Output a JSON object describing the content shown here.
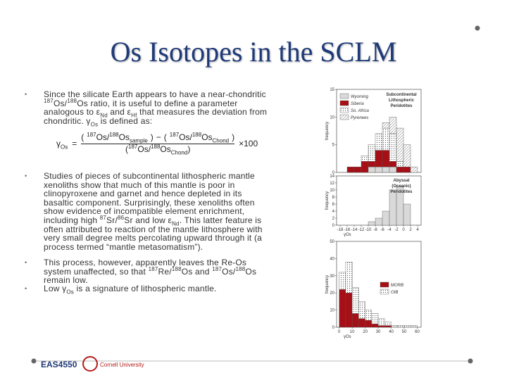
{
  "slide": {
    "title": "Os Isotopes in the SCLM",
    "bullets": [
      [
        "Since the silicate Earth appears to have a near-chondritic ",
        {
          "sup": "187"
        },
        "Os/",
        {
          "sup": "188"
        },
        "Os ratio, it is useful to define a parameter analogous to ε",
        {
          "sub": "Nd"
        },
        " and ε",
        {
          "sub": "Hf"
        },
        " that measures the deviation from chondritic. γ",
        {
          "sub": "Os"
        },
        " is defined as:"
      ],
      [
        "Studies of pieces of subcontinental lithospheric mantle xenoliths show that much of this mantle is poor in clinopyroxene and garnet and hence depleted in its basaltic component. Surprisingly, these xenoliths often show evidence of incompatible element enrichment, including high ",
        {
          "sup": "87"
        },
        "Sr/",
        {
          "sup": "86"
        },
        "Sr and low ε",
        {
          "sub": "Nd"
        },
        ". This latter feature is often attributed to reaction of the mantle lithosphere with very small degree melts percolating upward through it (a process termed “mantle metasomatism”)."
      ],
      [
        "This process, however, apparently leaves the Re-Os system unaffected, so that ",
        {
          "sup": "187"
        },
        "Re/",
        {
          "sup": "188"
        },
        "Os and ",
        {
          "sup": "187"
        },
        "Os/",
        {
          "sup": "188"
        },
        "Os remain low."
      ],
      [
        "Low γ",
        {
          "sub": "Os"
        },
        " is a signature of lithospheric mantle."
      ]
    ],
    "equation": {
      "lhs": [
        "γ",
        {
          "sub": "Os"
        }
      ],
      "num_a": [
        {
          "sup": "187"
        },
        "Os/",
        {
          "sup": "188"
        },
        "Os",
        {
          "sub": "sample"
        }
      ],
      "minus": "−",
      "num_b": [
        {
          "sup": "187"
        },
        "Os/",
        {
          "sup": "188"
        },
        "Os",
        {
          "sub": "Chond"
        }
      ],
      "den": [
        {
          "sup": "187"
        },
        "Os/",
        {
          "sup": "188"
        },
        "Os",
        {
          "sub": "Chond"
        }
      ],
      "times": "×100"
    },
    "footer": {
      "course": "EAS4550",
      "university": "Cornell University"
    }
  },
  "chart_data": [
    {
      "type": "histogram",
      "ylabel": "frequency",
      "annotation": [
        "Subcontinental",
        "Lithospheric",
        "Peridotites"
      ],
      "bins": [
        -16,
        -14,
        -12,
        -10,
        -8,
        -6,
        -4,
        -2,
        0,
        2,
        4
      ],
      "xlim": [
        -19,
        5
      ],
      "ylim": [
        0,
        15
      ],
      "yticks": [
        0,
        5,
        10,
        15
      ],
      "series": [
        {
          "name": "Wyoming",
          "color": "#d9d9d9",
          "values": [
            0,
            0,
            0,
            1,
            1,
            1,
            1,
            0,
            0,
            0
          ]
        },
        {
          "name": "Siberia",
          "color": "#a50f15",
          "values": [
            1,
            1,
            2,
            1,
            3,
            3,
            1,
            1,
            1,
            0
          ]
        },
        {
          "name": "So. Africa",
          "color": "#ffffff",
          "pattern": "dots",
          "values": [
            0,
            0,
            1,
            3,
            3,
            4,
            5,
            1,
            0,
            0
          ]
        },
        {
          "name": "Pyrenees",
          "color": "#ffffff",
          "pattern": "hatch",
          "values": [
            0,
            0,
            0,
            0,
            0,
            1,
            3,
            6,
            4,
            1
          ]
        }
      ]
    },
    {
      "type": "histogram",
      "ylabel": "frequency",
      "xlabel": "γOs",
      "annotation": [
        "Abyssal",
        "(Oceanic)",
        "Peridotites"
      ],
      "bins": [
        -10,
        -8,
        -6,
        -4,
        -2,
        0,
        2
      ],
      "xlim": [
        -19,
        5
      ],
      "ylim": [
        0,
        14
      ],
      "yticks": [
        0,
        2,
        4,
        6,
        8,
        10,
        12,
        14
      ],
      "xticks": [
        -18,
        -16,
        -14,
        -12,
        -10,
        -8,
        -6,
        -4,
        -2,
        0,
        2,
        4
      ],
      "series": [
        {
          "color": "#d9d9d9",
          "values": [
            1,
            2,
            4,
            10,
            11,
            6
          ]
        }
      ]
    },
    {
      "type": "histogram",
      "ylabel": "frequency",
      "xlabel": "γOs",
      "bins": [
        0,
        5,
        10,
        15,
        20,
        25,
        30,
        35,
        40,
        45,
        50,
        55,
        60
      ],
      "xlim": [
        -2,
        63
      ],
      "ylim": [
        0,
        50
      ],
      "yticks": [
        0,
        10,
        20,
        30,
        40,
        50
      ],
      "xticks": [
        0,
        10,
        20,
        30,
        40,
        50,
        60
      ],
      "series": [
        {
          "name": "MORB",
          "color": "#a50f15",
          "values": [
            22,
            20,
            8,
            5,
            4,
            2,
            1,
            1,
            0,
            0,
            0,
            0
          ]
        },
        {
          "name": "OIB",
          "color": "#ffffff",
          "pattern": "dots",
          "values": [
            10,
            18,
            15,
            10,
            6,
            6,
            4,
            2,
            1,
            1,
            1,
            1
          ]
        }
      ]
    }
  ]
}
